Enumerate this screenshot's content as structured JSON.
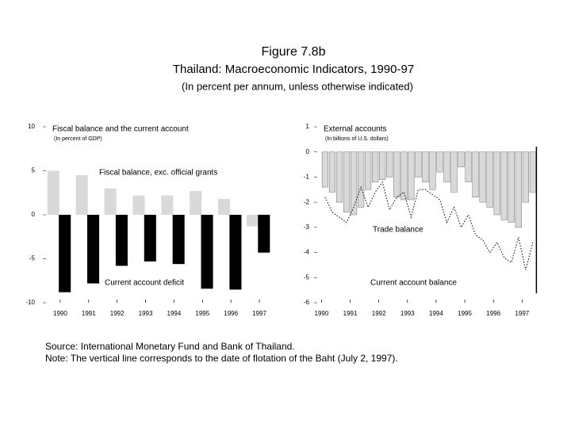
{
  "header": {
    "figure": "Figure 7.8b",
    "title": "Thailand: Macroeconomic Indicators, 1990-97",
    "subtitle": "(In percent per annum, unless otherwise indicated)"
  },
  "chart_data": [
    {
      "type": "bar",
      "title": "Fiscal balance and the current account",
      "subtitle": "(In percent of GDP)",
      "categories": [
        "1990",
        "1991",
        "1992",
        "1993",
        "1994",
        "1995",
        "1996",
        "1997"
      ],
      "series": [
        {
          "name": "Fiscal balance, exc. official grants",
          "color": "#d9d9d9",
          "values": [
            5,
            4.5,
            3,
            2.2,
            2.2,
            2.7,
            1.8,
            -1.3
          ]
        },
        {
          "name": "Current account deficit",
          "color": "#000000",
          "values": [
            -8.8,
            -7.8,
            -5.8,
            -5.3,
            -5.6,
            -8.4,
            -8.5,
            -4.3
          ]
        }
      ],
      "ylim": [
        -10,
        10
      ],
      "yticks": [
        10,
        5,
        0,
        -5,
        -10
      ]
    },
    {
      "type": "bar-line",
      "title": "External accounts",
      "subtitle": "(In billions of U.S. dollars)",
      "x": [
        1990.125,
        1990.375,
        1990.625,
        1990.875,
        1991.125,
        1991.375,
        1991.625,
        1991.875,
        1992.125,
        1992.375,
        1992.625,
        1992.875,
        1993.125,
        1993.375,
        1993.625,
        1993.875,
        1994.125,
        1994.375,
        1994.625,
        1994.875,
        1995.125,
        1995.375,
        1995.625,
        1995.875,
        1996.125,
        1996.375,
        1996.625,
        1996.875,
        1997.125,
        1997.375
      ],
      "series": [
        {
          "name": "Trade balance",
          "color": "#d9d9d9",
          "values": [
            -1.4,
            -1.6,
            -2.0,
            -2.4,
            -2.5,
            -2.2,
            -1.5,
            -1.2,
            -1.1,
            -1.0,
            -1.8,
            -1.9,
            -1.9,
            -1.0,
            -1.2,
            -1.5,
            -0.8,
            -1.2,
            -1.6,
            -0.6,
            -1.2,
            -1.8,
            -2.0,
            -2.2,
            -2.5,
            -2.7,
            -2.8,
            -3.0,
            -2.0,
            -1.6
          ]
        },
        {
          "name": "Current account balance",
          "color": "#000000",
          "values": [
            -1.8,
            -2.4,
            -2.6,
            -2.8,
            -2.2,
            -1.4,
            -2.2,
            -1.6,
            -1.2,
            -2.3,
            -1.8,
            -1.6,
            -2.6,
            -1.5,
            -1.5,
            -1.7,
            -1.9,
            -2.8,
            -2.2,
            -3.0,
            -2.5,
            -3.3,
            -3.5,
            -4.0,
            -3.6,
            -4.2,
            -4.4,
            -3.4,
            -4.7,
            -3.6
          ]
        }
      ],
      "xlim": [
        1989.85,
        1997.6
      ],
      "xticks": [
        1990,
        1991,
        1992,
        1993,
        1994,
        1995,
        1996,
        1997
      ],
      "ylim": [
        -6,
        1
      ],
      "yticks": [
        1,
        0,
        -1,
        -2,
        -3,
        -4,
        -5,
        -6
      ],
      "vline": 1997.5
    }
  ],
  "footer": {
    "source": "Source: International Monetary Fund and Bank of Thailand.",
    "note": "Note: The vertical line corresponds to the date of flotation of the Baht (July 2, 1997)."
  }
}
